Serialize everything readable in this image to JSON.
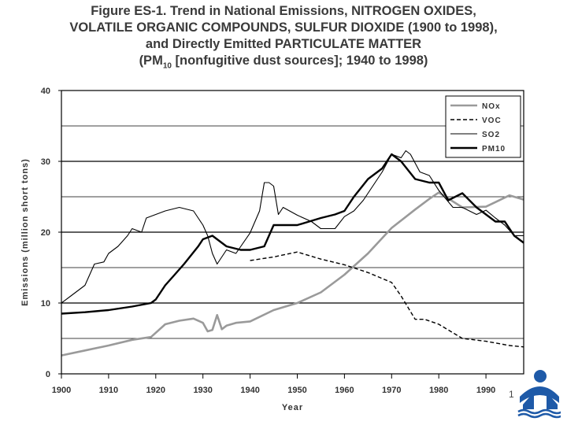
{
  "title_lines": [
    "Figure ES-1.  Trend in National Emissions, NITROGEN OXIDES,",
    "VOLATILE ORGANIC COMPOUNDS, SULFUR DIOXIDE (1900 to 1998),",
    "and Directly Emitted  PARTICULATE MATTER",
    "(PM10 [nonfugitive dust sources]; 1940 to 1998)"
  ],
  "slide_number": "1",
  "colors": {
    "nox": "#9a9a9a",
    "black": "#000000",
    "logo": "#1e5aa8"
  },
  "chart_data": {
    "type": "line",
    "title": "Trend in National Emissions, NITROGEN OXIDES, VOLATILE ORGANIC COMPOUNDS, SULFUR DIOXIDE (1900 to 1998), and Directly Emitted PARTICULATE MATTER (PM10 [nonfugitive dust sources]; 1940 to 1998)",
    "xlabel": "Year",
    "ylabel": "Emissions (million short tons)",
    "xlim": [
      1900,
      1998
    ],
    "ylim": [
      0,
      40
    ],
    "xticks": [
      "1900",
      "1910",
      "1920",
      "1930",
      "1940",
      "1950",
      "1960",
      "1970",
      "1980",
      "1990"
    ],
    "yticks": [
      "0",
      "10",
      "20",
      "30",
      "40"
    ],
    "legend": [
      "NOx",
      "VOC",
      "SO2",
      "PM10"
    ],
    "series": [
      {
        "name": "NOx",
        "style": "solid-gray",
        "x": [
          1900,
          1905,
          1910,
          1915,
          1919,
          1920,
          1922,
          1925,
          1928,
          1930,
          1931,
          1932,
          1933,
          1934,
          1935,
          1937,
          1940,
          1945,
          1950,
          1955,
          1960,
          1965,
          1970,
          1975,
          1978,
          1980,
          1985,
          1990,
          1995,
          1998
        ],
        "y": [
          2.6,
          3.3,
          4.0,
          4.8,
          5.2,
          5.8,
          7.0,
          7.5,
          7.8,
          7.2,
          6.0,
          6.2,
          8.3,
          6.3,
          6.8,
          7.2,
          7.4,
          9.0,
          10.0,
          11.5,
          14.0,
          17.0,
          20.6,
          23.2,
          24.7,
          25.6,
          23.5,
          23.6,
          25.2,
          24.6
        ]
      },
      {
        "name": "VOC",
        "style": "dashed",
        "x": [
          1940,
          1945,
          1950,
          1955,
          1960,
          1965,
          1970,
          1972,
          1975,
          1977,
          1980,
          1985,
          1990,
          1995,
          1998
        ],
        "y": [
          16.0,
          16.5,
          17.2,
          16.2,
          15.4,
          14.3,
          12.9,
          11.0,
          7.7,
          7.7,
          7.0,
          5.0,
          4.6,
          4.0,
          3.8
        ]
      },
      {
        "name": "SO2",
        "style": "solid-thin",
        "x": [
          1900,
          1902,
          1905,
          1907,
          1909,
          1910,
          1912,
          1914,
          1915,
          1917,
          1918,
          1920,
          1922,
          1925,
          1928,
          1929,
          1930,
          1931,
          1932,
          1933,
          1935,
          1937,
          1940,
          1942,
          1943,
          1944,
          1945,
          1946,
          1947,
          1950,
          1953,
          1955,
          1958,
          1960,
          1962,
          1964,
          1966,
          1968,
          1970,
          1972,
          1973,
          1974,
          1976,
          1978,
          1980,
          1983,
          1985,
          1988,
          1990,
          1992,
          1994,
          1996,
          1998
        ],
        "y": [
          10.0,
          11.0,
          12.5,
          15.5,
          15.8,
          17.0,
          18.0,
          19.5,
          20.5,
          20.0,
          22.0,
          22.5,
          23.0,
          23.5,
          23.0,
          22.0,
          21.0,
          19.5,
          17.0,
          15.5,
          17.5,
          17.0,
          19.9,
          23.0,
          27.0,
          27.0,
          26.5,
          22.5,
          23.5,
          22.4,
          21.5,
          20.5,
          20.5,
          22.2,
          23.0,
          24.5,
          26.5,
          28.5,
          31.0,
          30.5,
          31.5,
          31.0,
          28.5,
          28.0,
          25.9,
          23.5,
          23.5,
          22.5,
          23.1,
          22.0,
          21.0,
          19.5,
          19.5
        ]
      },
      {
        "name": "PM10",
        "style": "dotted-thick",
        "x": [
          1900,
          1905,
          1910,
          1915,
          1919,
          1920,
          1922,
          1924,
          1926,
          1929,
          1930,
          1932,
          1935,
          1938,
          1940,
          1943,
          1945,
          1950,
          1955,
          1958,
          1960,
          1962,
          1965,
          1968,
          1970,
          1972,
          1975,
          1978,
          1980,
          1982,
          1985,
          1988,
          1990,
          1992,
          1994,
          1996,
          1998
        ],
        "y": [
          8.5,
          8.7,
          9.0,
          9.5,
          10.0,
          10.5,
          12.5,
          14.0,
          15.5,
          18.0,
          19.0,
          19.5,
          18.0,
          17.5,
          17.5,
          18.0,
          21.0,
          21.0,
          22.0,
          22.5,
          23.0,
          25.0,
          27.5,
          29.0,
          31.0,
          30.0,
          27.5,
          27.0,
          27.0,
          24.5,
          25.5,
          23.5,
          22.5,
          21.5,
          21.5,
          19.5,
          18.5
        ]
      }
    ]
  }
}
